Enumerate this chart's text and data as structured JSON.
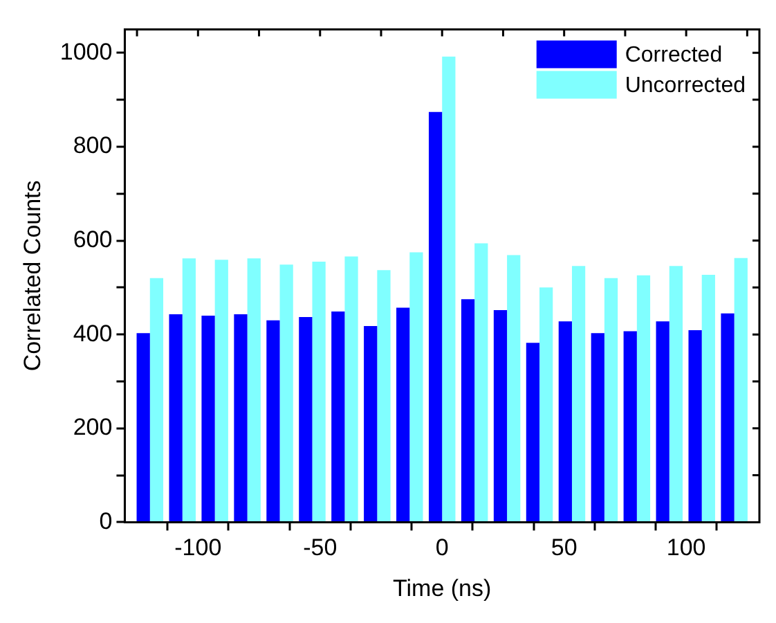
{
  "chart_data": {
    "type": "bar",
    "xlabel": "Time (ns)",
    "ylabel": "Correlated Counts",
    "x": [
      -119.7,
      -106.4,
      -93.1,
      -79.8,
      -66.5,
      -53.2,
      -39.9,
      -26.6,
      -13.3,
      0,
      13.3,
      26.6,
      39.9,
      53.2,
      66.5,
      79.8,
      93.1,
      106.4,
      119.7
    ],
    "series": [
      {
        "name": "Corrected",
        "color": "#0000ff",
        "values": [
          403,
          443,
          440,
          443,
          430,
          437,
          449,
          418,
          457,
          874,
          475,
          452,
          382,
          428,
          403,
          407,
          428,
          409,
          445
        ]
      },
      {
        "name": "Uncorrected",
        "color": "#80ffff",
        "values": [
          520,
          562,
          559,
          562,
          549,
          555,
          566,
          537,
          575,
          992,
          594,
          569,
          500,
          546,
          520,
          526,
          546,
          527,
          563
        ]
      }
    ],
    "xlim": [
      -130,
      130
    ],
    "xticks": [
      {
        "value": -125,
        "label": null
      },
      -100,
      {
        "value": -75,
        "label": null
      },
      -50,
      {
        "value": -25,
        "label": null
      },
      0,
      {
        "value": 25,
        "label": null
      },
      50,
      {
        "value": 75,
        "label": null
      },
      100,
      {
        "value": 125,
        "label": null
      }
    ],
    "ylim": [
      0,
      1050
    ],
    "yticks": [
      0,
      {
        "value": 100,
        "label": null
      },
      200,
      {
        "value": 300,
        "label": null
      },
      400,
      {
        "value": 500,
        "label": null
      },
      600,
      {
        "value": 700,
        "label": null
      },
      800,
      {
        "value": 900,
        "label": null
      },
      1000
    ],
    "grid": false,
    "legend": "top right"
  }
}
